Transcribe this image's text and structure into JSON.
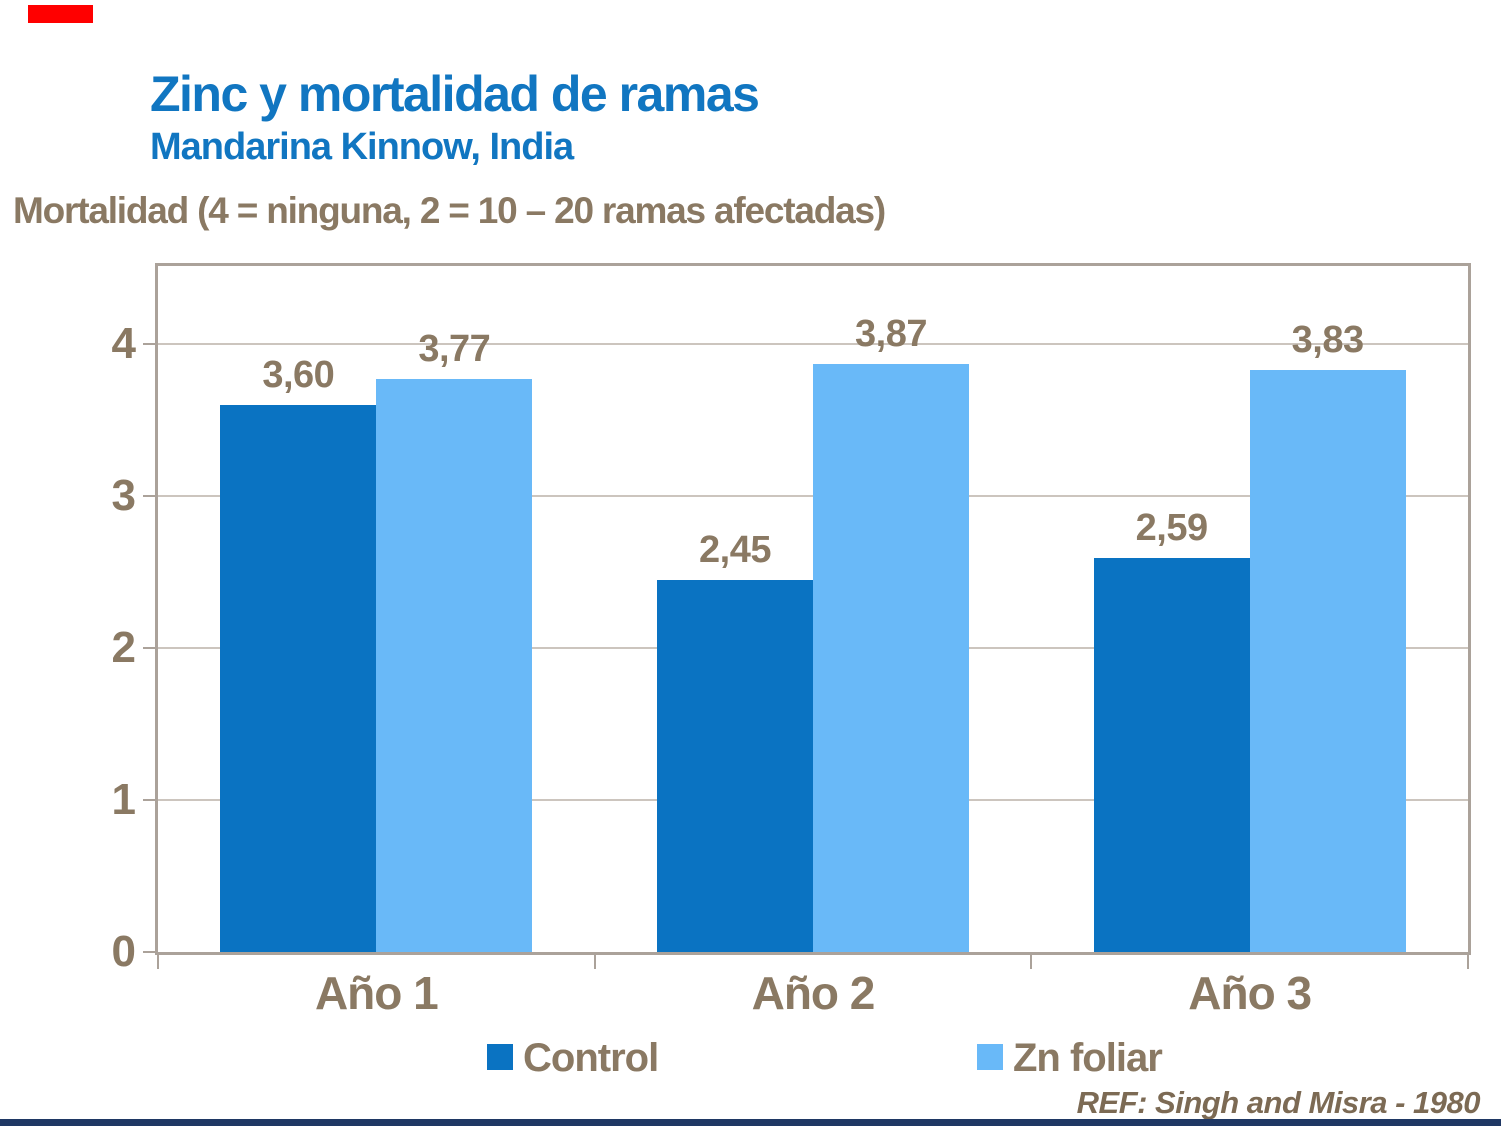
{
  "slide": {
    "title": "Zinc y mortalidad de ramas",
    "subtitle": "Mandarina Kinnow, India",
    "axis_caption": "Mortalidad (4 = ninguna, 2 = 10 – 20 ramas afectadas)",
    "reference": "REF: Singh and Misra - 1980"
  },
  "colors": {
    "title_blue": "#1176c1",
    "text_brown": "#8a7963",
    "reference_brown": "#7c6a54",
    "control_blue": "#0a73c2",
    "zn_foliar_blue": "#69b9f8",
    "frame_gray": "#aba29a",
    "grid_gray": "#ccc5be",
    "accent_red": "#ff0000",
    "footer_navy": "#1f3864"
  },
  "chart_data": {
    "type": "bar",
    "title": "Zinc y mortalidad de ramas",
    "subtitle": "Mandarina Kinnow, India",
    "ylabel": "Mortalidad (4 = ninguna, 2 = 10 – 20 ramas afectadas)",
    "xlabel": "",
    "categories": [
      "Año 1",
      "Año 2",
      "Año 3"
    ],
    "series": [
      {
        "name": "Control",
        "color": "#0a73c2",
        "values": [
          3.6,
          2.45,
          2.59
        ],
        "value_labels": [
          "3,60",
          "2,45",
          "2,59"
        ]
      },
      {
        "name": "Zn foliar",
        "color": "#69b9f8",
        "values": [
          3.77,
          3.87,
          3.83
        ],
        "value_labels": [
          "3,77",
          "3,87",
          "3,83"
        ]
      }
    ],
    "y_ticks": [
      0,
      1,
      2,
      3,
      4
    ],
    "ylim": [
      0,
      4.53
    ],
    "grid": true,
    "legend_position": "bottom"
  }
}
